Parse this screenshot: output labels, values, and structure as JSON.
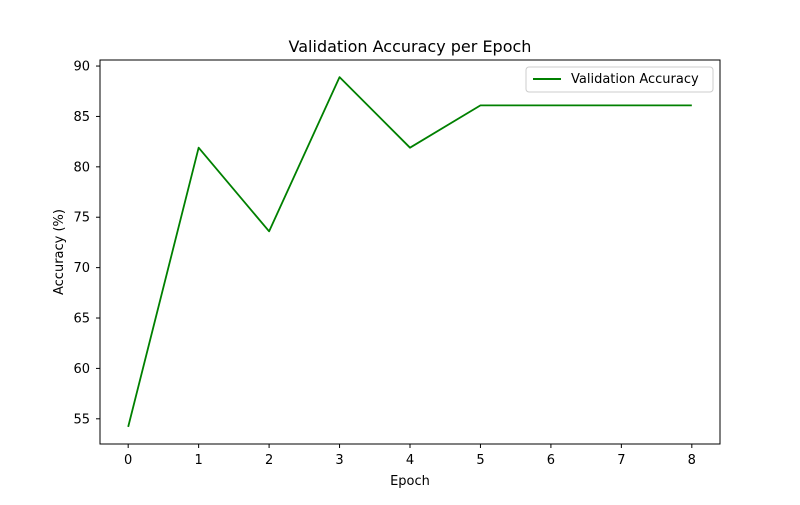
{
  "chart_data": {
    "type": "line",
    "title": "Validation Accuracy per Epoch",
    "xlabel": "Epoch",
    "ylabel": "Accuracy (%)",
    "x": [
      0,
      1,
      2,
      3,
      4,
      5,
      6,
      7,
      8
    ],
    "series": [
      {
        "name": "Validation Accuracy",
        "color": "#008000",
        "values": [
          54.2,
          81.9,
          73.6,
          88.9,
          81.9,
          86.1,
          86.1,
          86.1,
          86.1
        ]
      }
    ],
    "xlim": [
      -0.4,
      8.4
    ],
    "ylim": [
      52.5,
      90.6
    ],
    "xticks": [
      0,
      1,
      2,
      3,
      4,
      5,
      6,
      7,
      8
    ],
    "yticks": [
      55,
      60,
      65,
      70,
      75,
      80,
      85,
      90
    ],
    "grid": false,
    "legend_position": "top-right"
  }
}
